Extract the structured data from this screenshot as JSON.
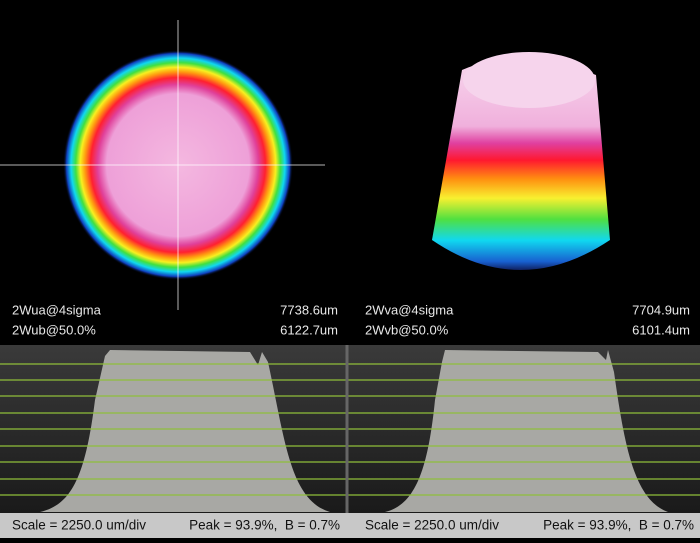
{
  "panels": [
    {
      "measurements": [
        {
          "label": "2Wua@4sigma",
          "value": "7738.6um"
        },
        {
          "label": "2Wub@50.0%",
          "value": "6122.7um"
        }
      ],
      "footer": {
        "scale": "Scale = 2250.0 um/div",
        "peak": "Peak = 93.9%,  B = 0.7%"
      }
    },
    {
      "measurements": [
        {
          "label": "2Wva@4sigma",
          "value": "7704.9um"
        },
        {
          "label": "2Wvb@50.0%",
          "value": "6101.4um"
        }
      ],
      "footer": {
        "scale": "Scale = 2250.0 um/div",
        "peak": "Peak = 93.9%,  B = 0.7%"
      }
    }
  ]
}
